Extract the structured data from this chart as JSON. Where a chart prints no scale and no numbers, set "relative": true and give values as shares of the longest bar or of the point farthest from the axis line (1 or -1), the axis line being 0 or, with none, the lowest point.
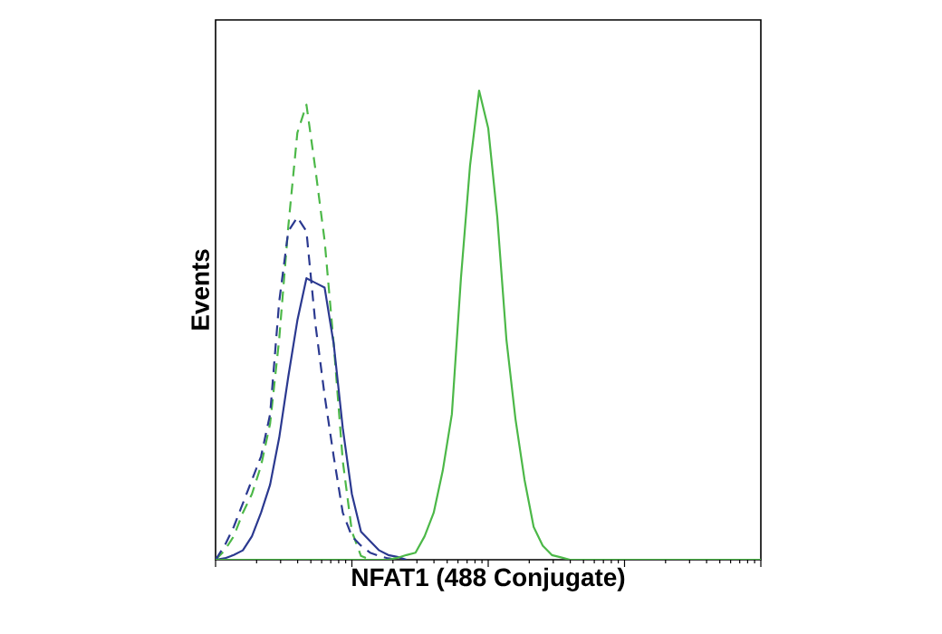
{
  "chart_data": {
    "type": "line",
    "relative": true,
    "xlabel": "NFAT1 (488 Conjugate)",
    "ylabel": "Events",
    "legend": false,
    "grid": false,
    "marker": "none",
    "categories": [
      null,
      null,
      null,
      null,
      null,
      null,
      null,
      null,
      null,
      null,
      null,
      null,
      null,
      null,
      null,
      null,
      null,
      null,
      null,
      null,
      null,
      null,
      null,
      null,
      null,
      null,
      null,
      null,
      null,
      null,
      null,
      null,
      null,
      null,
      null,
      null,
      null,
      null,
      null,
      null,
      null,
      null,
      null,
      null,
      null,
      null,
      null,
      null,
      null,
      null,
      null,
      null,
      null,
      null,
      null,
      null,
      null,
      null,
      null,
      null,
      null
    ],
    "series": [
      {
        "color": "#4cb848",
        "line_style": "dashed",
        "values": [
          0,
          0.02,
          0.05,
          0.1,
          0.14,
          0.2,
          0.29,
          0.47,
          0.71,
          0.91,
          0.97,
          0.83,
          0.68,
          0.46,
          0.21,
          0.06,
          0.008,
          0,
          null,
          null,
          null,
          null,
          null,
          null,
          null,
          null,
          null,
          null,
          null,
          null,
          null,
          null,
          null,
          null,
          null,
          null,
          null,
          null,
          null,
          null,
          null,
          null,
          null,
          null,
          null,
          null,
          null,
          null,
          null,
          null,
          null,
          null,
          null,
          null,
          null,
          null,
          null,
          null,
          null,
          null,
          null
        ]
      },
      {
        "color": "#2b3990",
        "line_style": "dashed",
        "values": [
          0,
          0.03,
          0.07,
          0.12,
          0.17,
          0.22,
          0.31,
          0.55,
          0.7,
          0.73,
          0.7,
          0.5,
          0.35,
          0.22,
          0.1,
          0.05,
          0.03,
          0.015,
          0.008,
          0.003,
          0,
          null,
          null,
          null,
          null,
          null,
          null,
          null,
          null,
          null,
          null,
          null,
          null,
          null,
          null,
          null,
          null,
          null,
          null,
          null,
          null,
          null,
          null,
          null,
          null,
          null,
          null,
          null,
          null,
          null,
          null,
          null,
          null,
          null,
          null,
          null,
          null,
          null,
          null,
          null,
          null
        ]
      },
      {
        "color": "#2b3990",
        "line_style": "solid",
        "values": [
          0,
          0.003,
          0.01,
          0.02,
          0.05,
          0.1,
          0.16,
          0.26,
          0.39,
          0.51,
          0.6,
          0.59,
          0.58,
          0.46,
          0.28,
          0.14,
          0.06,
          0.04,
          0.02,
          0.01,
          0.006,
          0,
          null,
          null,
          null,
          null,
          null,
          null,
          null,
          null,
          null,
          null,
          null,
          null,
          null,
          null,
          null,
          null,
          null,
          null,
          null,
          null,
          null,
          null,
          null,
          null,
          null,
          null,
          null,
          null,
          null,
          null,
          null,
          null,
          null,
          null,
          null,
          null,
          null,
          null,
          null
        ]
      },
      {
        "color": "#4cb848",
        "line_style": "solid",
        "values": [
          0,
          0,
          0,
          0,
          0,
          0,
          0,
          0,
          0,
          0,
          0,
          0,
          0,
          0,
          0,
          0,
          0,
          0,
          0,
          0,
          0.004,
          0.01,
          0.015,
          0.05,
          0.1,
          0.19,
          0.31,
          0.6,
          0.84,
          1.0,
          0.92,
          0.73,
          0.47,
          0.3,
          0.17,
          0.07,
          0.03,
          0.01,
          0.005,
          0,
          0,
          0,
          0,
          0,
          0,
          0,
          0,
          0,
          0,
          0,
          0,
          0,
          0,
          0,
          0,
          0,
          0,
          0,
          0,
          0,
          0
        ]
      }
    ]
  }
}
